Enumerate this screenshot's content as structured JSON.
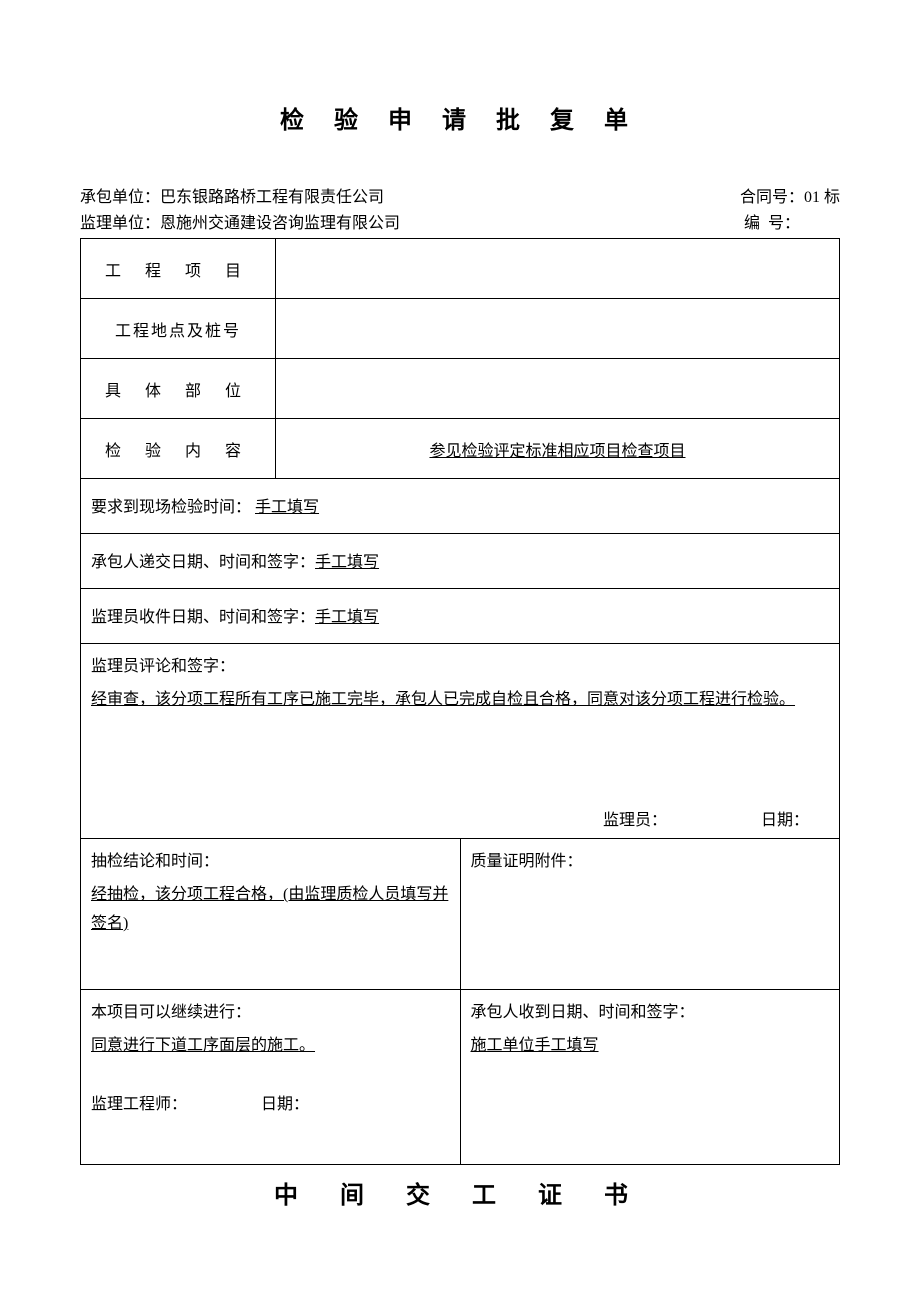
{
  "title": "检 验 申 请 批 复 单",
  "title2": "中 间 交 工 证 书",
  "header": {
    "contractor_label": "承包单位：",
    "contractor_value": "巴东银路路桥工程有限责任公司",
    "contract_no_label": "合同号：",
    "contract_no_value": "01 标",
    "supervisor_label": "监理单位：",
    "supervisor_value": "恩施州交通建设咨询监理有限公司",
    "serial_label": "编",
    "serial_label2": "号："
  },
  "rows": {
    "project_label": "工 程 项 目",
    "location_label": "工程地点及桩号",
    "part_label": "具 体 部 位",
    "inspect_content_label": "检 验 内 容",
    "inspect_content_value": "参见检验评定标准相应项目检查项目",
    "site_time_label": "要求到现场检验时间：",
    "site_time_value": "手工填写",
    "contractor_submit_label": "承包人递交日期、时间和签字：",
    "contractor_submit_value": "手工填写",
    "supervisor_receive_label": "监理员收件日期、时间和签字：",
    "supervisor_receive_value": "手工填写",
    "comment_title": "监理员评论和签字：",
    "comment_body": "经审查，该分项工程所有工序已施工完毕，承包人已完成自检且合格，同意对该分项工程进行检验。",
    "supervisor_sig_label": "监理员：",
    "date_label": "日期：",
    "spot_check_title": "抽检结论和时间：",
    "spot_check_body": "经抽检，该分项工程合格，(由监理质检人员填写并签名)",
    "quality_attach_title": "质量证明附件：",
    "continue_title": "本项目可以继续进行：",
    "continue_body": "同意进行下道工序面层的施工。",
    "engineer_label": "监理工程师：",
    "contractor_receive_title": "承包人收到日期、时间和签字：",
    "contractor_receive_body": "施工单位手工填写"
  }
}
